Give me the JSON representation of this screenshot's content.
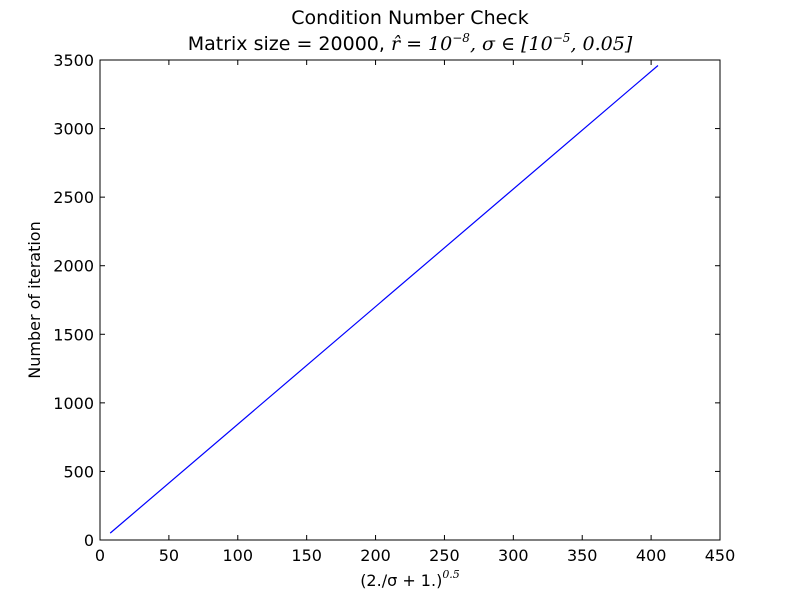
{
  "chart_data": {
    "type": "line",
    "title": "Condition Number Check",
    "subtitle": {
      "prefix": "Matrix size = 20000, ",
      "r_symbol": "r̂",
      "eq": " = 10",
      "r_exp": "−8",
      "sigma_part": ", σ ∈ [10",
      "sigma_exp": "−5",
      "sigma_end": ", 0.05]"
    },
    "xlabel": {
      "base": "(2./σ + 1.)",
      "exponent": "0.5"
    },
    "ylabel": "Number of iteration",
    "xlim": [
      0,
      450
    ],
    "ylim": [
      0,
      3500
    ],
    "xticks": [
      0,
      50,
      100,
      150,
      200,
      250,
      300,
      350,
      400,
      450
    ],
    "yticks": [
      0,
      500,
      1000,
      1500,
      2000,
      2500,
      3000,
      3500
    ],
    "grid": false,
    "line_color": "#0000ff",
    "series": [
      {
        "x": [
          7.4,
          405
        ],
        "y": [
          50,
          3460
        ]
      }
    ]
  }
}
